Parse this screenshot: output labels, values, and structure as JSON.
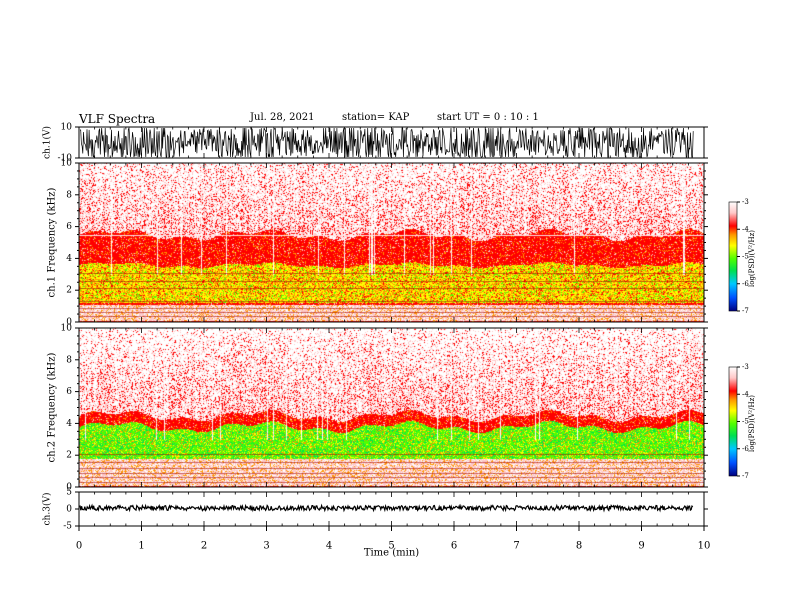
{
  "header": {
    "title": "VLF Spectra",
    "date": "Jul. 28, 2021",
    "station": "station= KAP",
    "start_ut": "start UT =   0 : 10 : 1"
  },
  "chart_data": [
    {
      "type": "line",
      "panel": "ch1-waveform",
      "ylabel": "ch.1(V)",
      "ytick_labels": [
        "10",
        "-10"
      ],
      "ylim": [
        -10,
        10
      ],
      "xlim": [
        0,
        10
      ],
      "trace_extent_min": 9.83,
      "description_color": "#000000"
    },
    {
      "type": "heatmap",
      "panel": "ch1-spectrogram",
      "ylabel": "ch.1 Frequency (kHz)",
      "ylim": [
        0,
        10
      ],
      "yticks": [
        "0",
        "2",
        "4",
        "6",
        "8",
        "10"
      ],
      "xlim": [
        0,
        10
      ],
      "colorbar": {
        "label": "log(PSD)(V²/Hz)",
        "ticks": [
          "-3",
          "-4",
          "-5",
          "-6",
          "-7"
        ],
        "range": [
          -7,
          -3
        ]
      },
      "bands": {
        "noise_top_khz": 5.5,
        "green_yellow_band_khz": [
          1.2,
          3.6
        ],
        "white_band_khz": [
          0.1,
          1.1
        ]
      }
    },
    {
      "type": "heatmap",
      "panel": "ch2-spectrogram",
      "ylabel": "ch.2 Frequency (kHz)",
      "ylim": [
        0,
        10
      ],
      "yticks": [
        "0",
        "2",
        "4",
        "6",
        "8",
        "10"
      ],
      "xlim": [
        0,
        10
      ],
      "colorbar": {
        "label": "log(PSD)(V²/Hz)",
        "ticks": [
          "-3",
          "-4",
          "-5",
          "-6",
          "-7"
        ],
        "range": [
          -7,
          -3
        ]
      },
      "bands": {
        "noise_top_khz": 4.5,
        "green_band_khz": [
          1.8,
          3.8
        ],
        "white_band_khz": [
          0.1,
          1.9
        ]
      }
    },
    {
      "type": "line",
      "panel": "ch3-waveform",
      "ylabel": "ch.3(V)",
      "ytick_labels": [
        "5",
        "0",
        "-5"
      ],
      "ylim": [
        -5,
        5
      ],
      "xlim": [
        0,
        10
      ],
      "level_v": 0.3
    }
  ],
  "xaxis": {
    "label": "Time (min)",
    "ticks": [
      "0",
      "1",
      "2",
      "3",
      "4",
      "5",
      "6",
      "7",
      "8",
      "9",
      "10"
    ]
  },
  "colors": {
    "colormap": [
      "#000080",
      "#0050ff",
      "#00c8ff",
      "#00e050",
      "#50ff00",
      "#ffff00",
      "#ff9600",
      "#ff0000",
      "#ffc8c8",
      "#ffffff"
    ]
  }
}
